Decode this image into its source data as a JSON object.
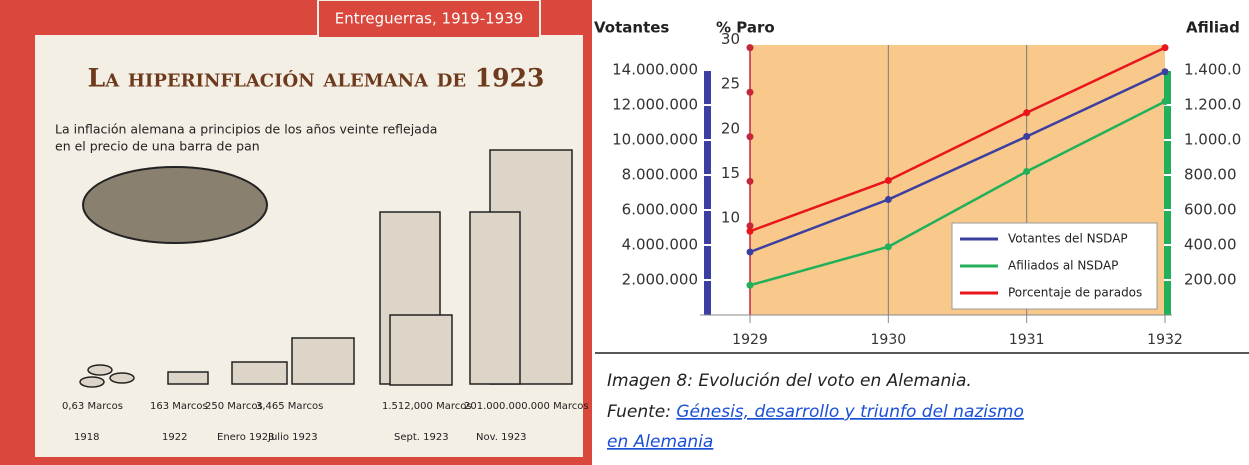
{
  "illustration": {
    "banner": "Entreguerras, 1919-1939",
    "title": "La hiperinflación alemana de 1923",
    "subtitle": [
      "La inflación alemana a principios de los años veinte reflejada",
      "en el precio de una barra de pan"
    ],
    "items": [
      {
        "amount": "0,63 Marcos",
        "date": "1918"
      },
      {
        "amount": "163 Marcos",
        "date": "1922"
      },
      {
        "amount": "250 Marcos",
        "date": "Enero 1923"
      },
      {
        "amount": "3,465 Marcos",
        "date": "Julio 1923"
      },
      {
        "amount": "1.512,000 Marcos",
        "date": "Sept. 1923"
      },
      {
        "amount": "201.000.000.000 Marcos",
        "date": "Nov. 1923"
      }
    ]
  },
  "chart_data": {
    "type": "line",
    "y_label": "Votantes",
    "y3_label": "% Paro",
    "y2_label": "Afiliad",
    "categories": [
      "1929",
      "1930",
      "1931",
      "1932"
    ],
    "ylim": [
      0,
      15430000
    ],
    "yticks": [
      {
        "value": 2000000,
        "label": "2.000.000"
      },
      {
        "value": 4000000,
        "label": "4.000.000"
      },
      {
        "value": 6000000,
        "label": "6.000.000"
      },
      {
        "value": 8000000,
        "label": "8.000.000"
      },
      {
        "value": 10000000,
        "label": "10.000.000"
      },
      {
        "value": 12000000,
        "label": "12.000.000"
      },
      {
        "value": 14000000,
        "label": "14.000.000"
      }
    ],
    "y2lim": [
      0,
      1543000
    ],
    "y2ticks": [
      {
        "value": 200000,
        "label": "200.00"
      },
      {
        "value": 400000,
        "label": "400.00"
      },
      {
        "value": 600000,
        "label": "600.00"
      },
      {
        "value": 800000,
        "label": "800.00"
      },
      {
        "value": 1000000,
        "label": "1.000.0"
      },
      {
        "value": 1200000,
        "label": "1.200.0"
      },
      {
        "value": 1400000,
        "label": "1.400.0"
      }
    ],
    "y3lim": [
      0,
      30.3
    ],
    "y3ticks": [
      10,
      15,
      20,
      25,
      30
    ],
    "grid": true,
    "legend": "lower right",
    "series": [
      {
        "name": "Votantes del NSDAP",
        "color": "#3b3fa0",
        "values": [
          3600000,
          6600000,
          10200000,
          13900000
        ]
      },
      {
        "name": "Afiliados al NSDAP",
        "color": "#22b05a",
        "axis": "y2",
        "values": [
          170000,
          390000,
          820000,
          1220000
        ]
      },
      {
        "name": "Porcentaje de parados",
        "color": "#e8161b",
        "axis": "y3",
        "values": [
          9.4,
          15.1,
          22.7,
          30
        ]
      }
    ]
  },
  "caption": {
    "line1": "Imagen 8: Evolución del voto en Alemania.",
    "source_label": "Fuente: ",
    "link": [
      "Génesis, desarrollo y triunfo del nazismo",
      "en Alemania"
    ]
  }
}
